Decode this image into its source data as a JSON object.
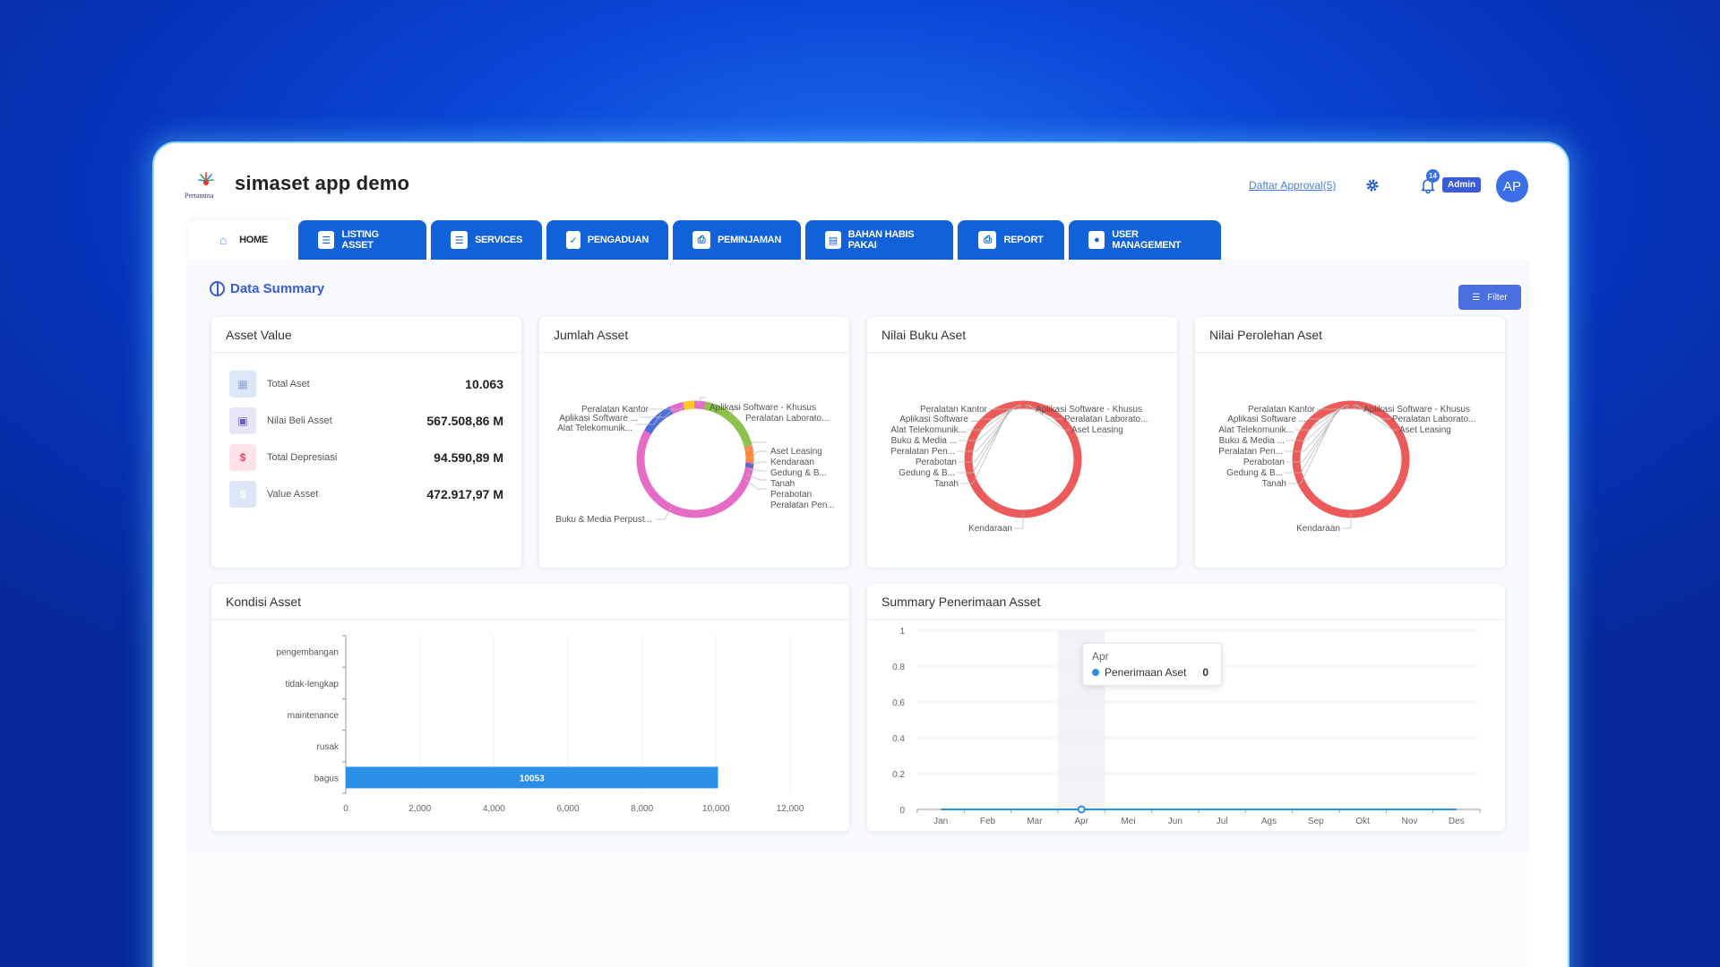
{
  "header": {
    "logo_text": "Pertamina",
    "app_title": "simaset app demo",
    "approval_link": "Daftar Approval(5)",
    "notif_count": "14",
    "role_badge": "Admin",
    "avatar_initials": "AP"
  },
  "tabs": [
    {
      "label": "HOME",
      "icon": "home-icon"
    },
    {
      "label": "LISTING ASSET",
      "icon": "list-icon"
    },
    {
      "label": "SERVICES",
      "icon": "list-icon"
    },
    {
      "label": "PENGADUAN",
      "icon": "clipboard-icon"
    },
    {
      "label": "PEMINJAMAN",
      "icon": "printer-icon"
    },
    {
      "label": "BAHAN HABIS PAKAI",
      "icon": "doc-icon"
    },
    {
      "label": "REPORT",
      "icon": "printer-icon"
    },
    {
      "label": "USER MANAGEMENT",
      "icon": "users-icon"
    }
  ],
  "section": {
    "title": "Data Summary",
    "filter_label": "Filter"
  },
  "asset_value": {
    "title": "Asset Value",
    "rows": [
      {
        "label": "Total Aset",
        "value": "10.063",
        "icon": "boxes-icon"
      },
      {
        "label": "Nilai Beli Asset",
        "value": "567.508,86 M",
        "icon": "money-icon"
      },
      {
        "label": "Total Depresiasi",
        "value": "94.590,89 M",
        "icon": "dollar-icon"
      },
      {
        "label": "Value Asset",
        "value": "472.917,97 M",
        "icon": "dollar-icon"
      }
    ]
  },
  "jumlah_asset": {
    "title": "Jumlah Asset",
    "labels": [
      "Peralatan Kantor",
      "Aplikasi Software ...",
      "Alat Telekomunik...",
      "Aplikasi Software - Khusus",
      "Peralatan Laborato...",
      "Aset Leasing",
      "Kendaraan",
      "Gedung & B...",
      "Tanah",
      "Perabotan",
      "Peralatan Pen...",
      "Buku & Media Perpust..."
    ]
  },
  "nilai_buku": {
    "title": "Nilai Buku Aset",
    "labels": [
      "Peralatan Kantor",
      "Aplikasi Software ...",
      "Alat Telekomunik...",
      "Buku & Media ...",
      "Peralatan Pen...",
      "Perabotan",
      "Gedung & B...",
      "Tanah",
      "Aplikasi Software - Khusus",
      "Peralatan Laborato...",
      "Aset Leasing",
      "Kendaraan"
    ]
  },
  "nilai_perolehan": {
    "title": "Nilai Perolehan Aset",
    "labels": [
      "Peralatan Kantor",
      "Aplikasi Software ...",
      "Alat Telekomunik...",
      "Buku & Media ...",
      "Peralatan Pen...",
      "Perabotan",
      "Gedung & B...",
      "Tanah",
      "Aplikasi Software - Khusus",
      "Peralatan Laborato...",
      "Aset Leasing",
      "Kendaraan"
    ]
  },
  "kondisi_asset": {
    "title": "Kondisi Asset",
    "chart_data": {
      "type": "bar",
      "orientation": "horizontal",
      "categories": [
        "pengembangan",
        "tidak-lengkap",
        "maintenance",
        "rusak",
        "bagus"
      ],
      "values": [
        0,
        0,
        0,
        0,
        10053
      ],
      "data_labels": [
        "",
        "",
        "",
        "",
        "10053"
      ],
      "xlim": [
        0,
        12000
      ],
      "xticks": [
        "0",
        "2,000",
        "4,000",
        "6,000",
        "8,000",
        "10,000",
        "12,000"
      ],
      "grid": "vertical",
      "colors": {
        "bar": "#2b8fe8"
      }
    }
  },
  "penerimaan": {
    "title": "Summary Penerimaan Asset",
    "tooltip": {
      "month": "Apr",
      "series": "Penerimaan Aset",
      "value": "0"
    },
    "chart_data": {
      "type": "line",
      "categories": [
        "Jan",
        "Feb",
        "Mar",
        "Apr",
        "Mei",
        "Jun",
        "Jul",
        "Ags",
        "Sep",
        "Okt",
        "Nov",
        "Des"
      ],
      "series": [
        {
          "name": "Penerimaan Aset",
          "values": [
            0,
            0,
            0,
            0,
            0,
            0,
            0,
            0,
            0,
            0,
            0,
            0
          ]
        }
      ],
      "ylim": [
        0,
        1
      ],
      "yticks": [
        "0",
        "0.2",
        "0.4",
        "0.6",
        "0.8",
        "1"
      ],
      "highlight": "Apr",
      "grid": "horizontal",
      "colors": {
        "line": "#2b8fe8"
      }
    }
  }
}
